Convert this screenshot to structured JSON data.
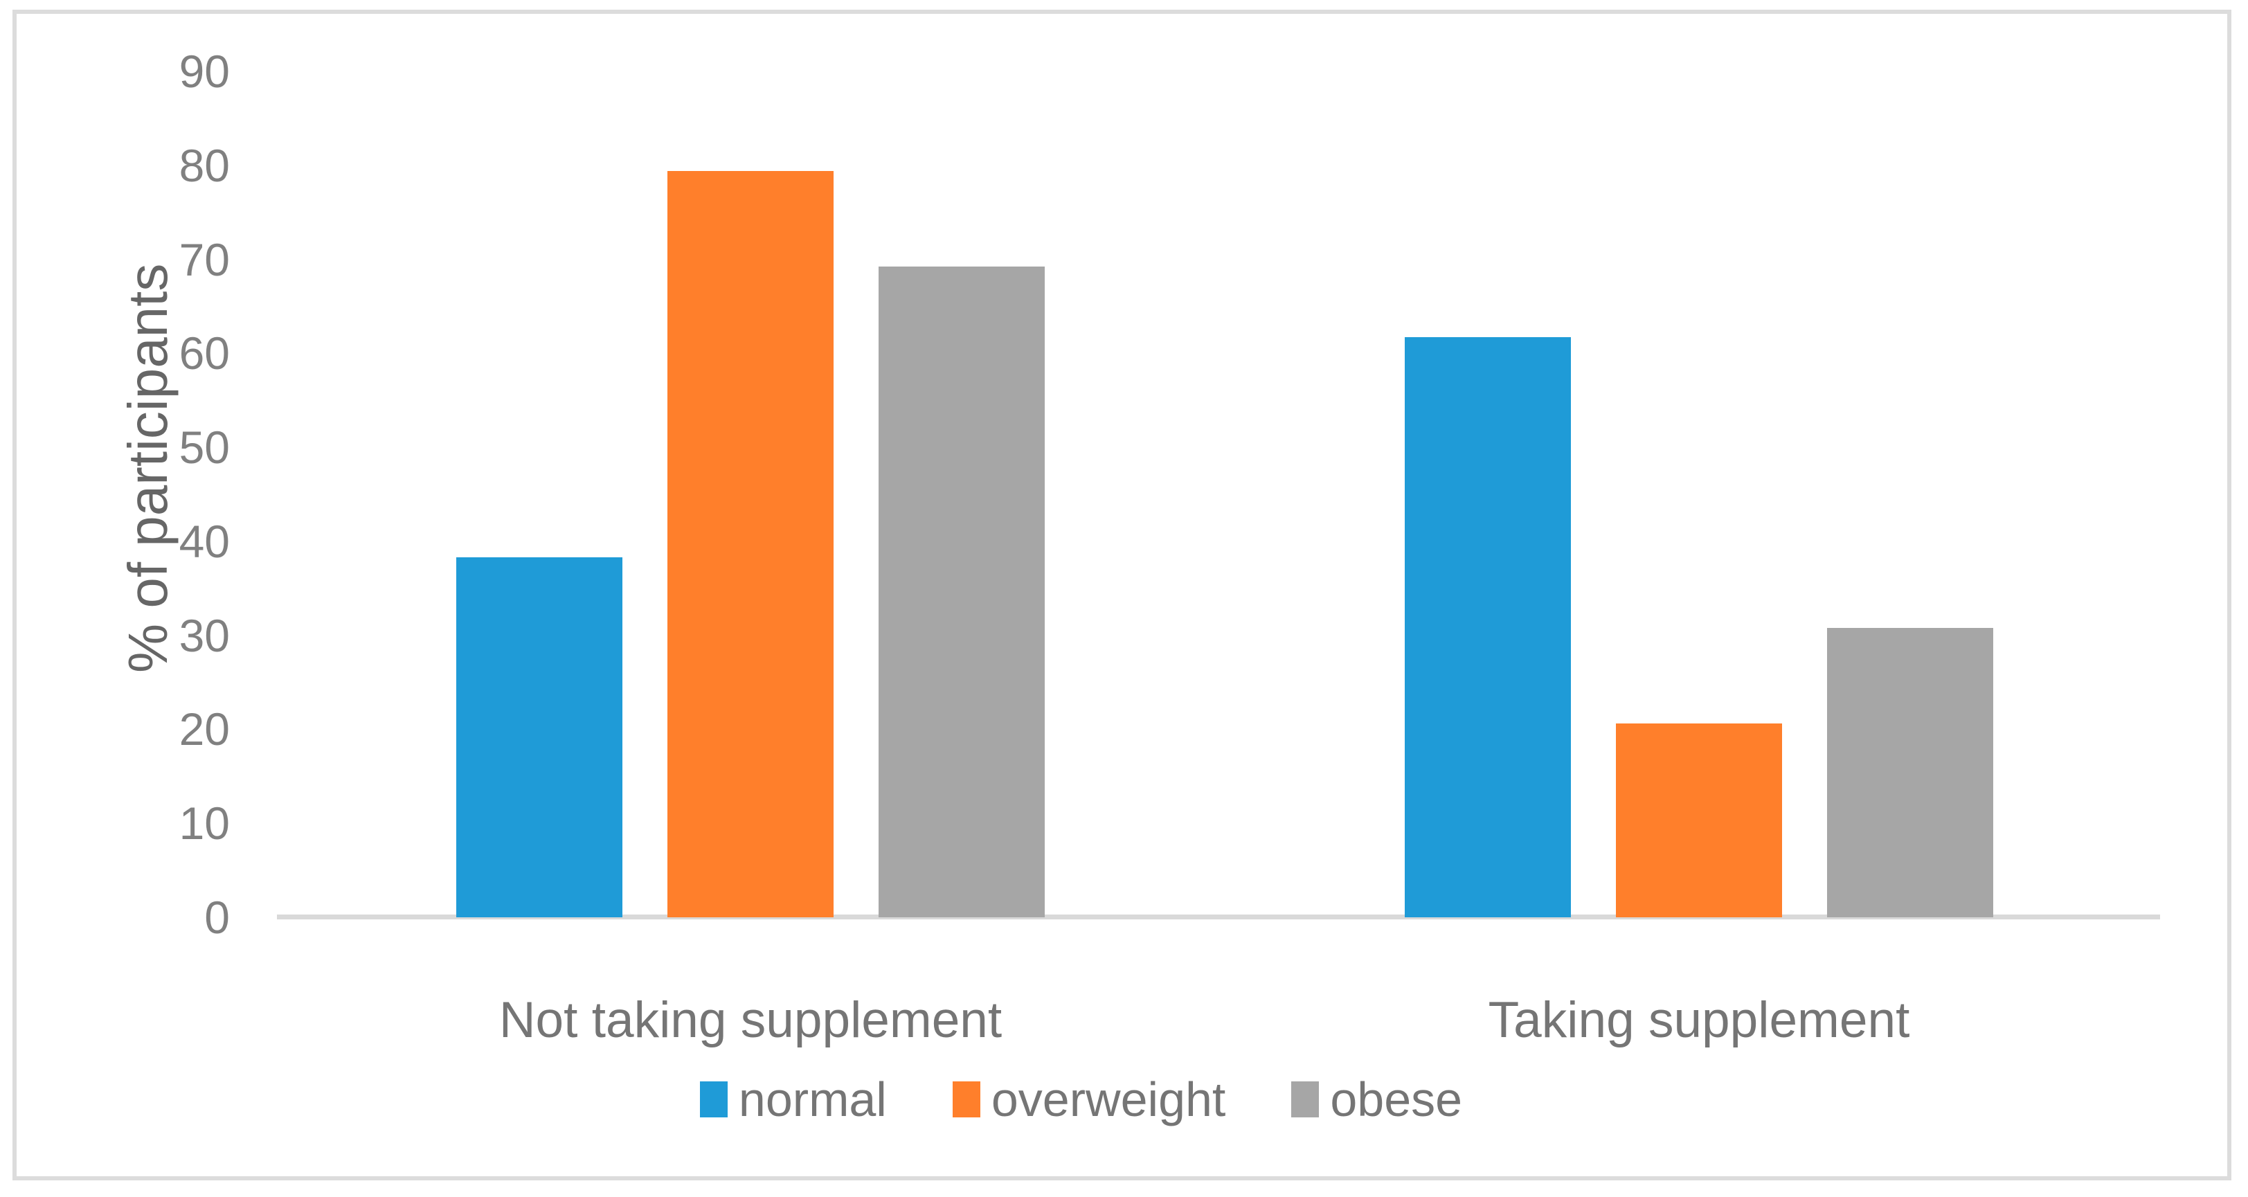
{
  "figure": {
    "background": "#FFFFFF",
    "border_color": "#DCDCDC"
  },
  "chart_data": {
    "type": "bar",
    "title": "",
    "categories": [
      "Not taking supplement",
      "Taking supplement"
    ],
    "series": [
      {
        "name": "normal",
        "color": "#1F9BD7",
        "values": [
          38.3,
          61.7
        ]
      },
      {
        "name": "overweight",
        "color": "#FF7F2B",
        "values": [
          79.4,
          20.6
        ]
      },
      {
        "name": "obese",
        "color": "#A6A6A6",
        "values": [
          69.2,
          30.8
        ]
      }
    ],
    "ylabel": "% of participants",
    "ylim": [
      0,
      90
    ],
    "yticks": [
      0,
      10,
      20,
      30,
      40,
      50,
      60,
      70,
      80,
      90
    ],
    "grid": false,
    "legend_position": "bottom",
    "axis_color": "#D9D9D9",
    "tick_label_color": "#808080",
    "category_label_color": "#757575",
    "legend_label_color": "#757575",
    "ylabel_color": "#666666"
  }
}
